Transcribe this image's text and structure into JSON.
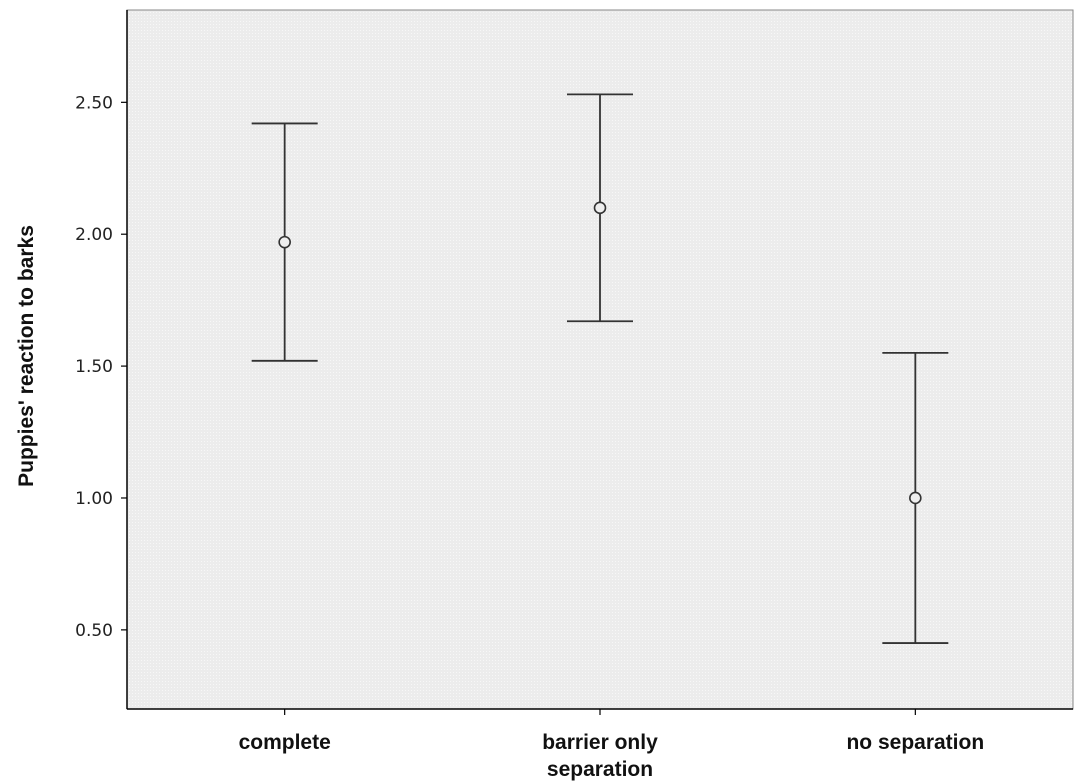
{
  "chart_data": {
    "type": "scatter",
    "title": "",
    "xlabel": "",
    "ylabel": "Puppies' reaction to barks",
    "ylim": [
      0.2,
      2.85
    ],
    "yticks": [
      "0.50",
      "1.00",
      "1.50",
      "2.00",
      "2.50"
    ],
    "grid": false,
    "categories": [
      [
        "complete"
      ],
      [
        "barrier only",
        "separation"
      ],
      [
        "no separation"
      ]
    ],
    "series": [
      {
        "values": [
          1.97,
          2.1,
          1.0
        ],
        "error_low": [
          1.52,
          1.67,
          0.45
        ],
        "error_high": [
          2.42,
          2.53,
          1.55
        ]
      }
    ],
    "colors": {
      "plot_background": "#eeeeee",
      "marks": "#333333",
      "axis": "#000000"
    }
  }
}
